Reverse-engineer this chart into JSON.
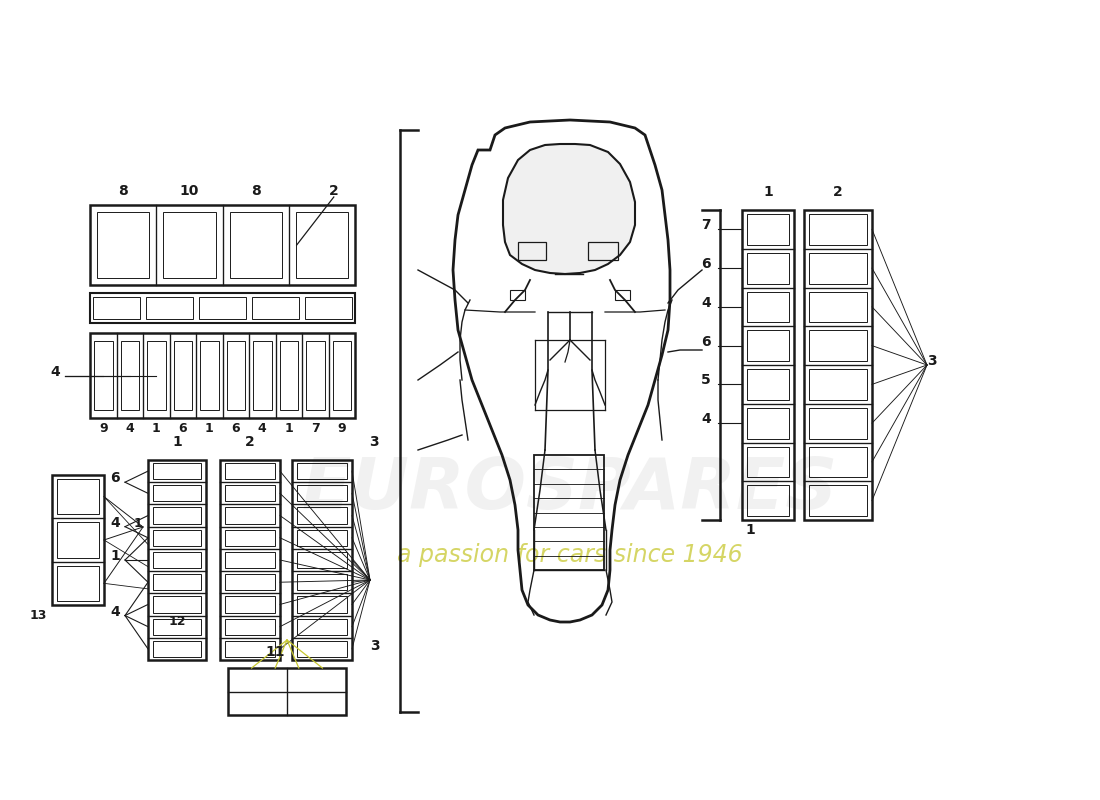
{
  "bg_color": "#ffffff",
  "line_color": "#1a1a1a",
  "fig_width": 11.0,
  "fig_height": 8.0,
  "dpi": 100,
  "watermark_text": "a passion for cars since 1946",
  "watermark2_text": "EUROSPARES",
  "watermark_color": "#c8c832"
}
